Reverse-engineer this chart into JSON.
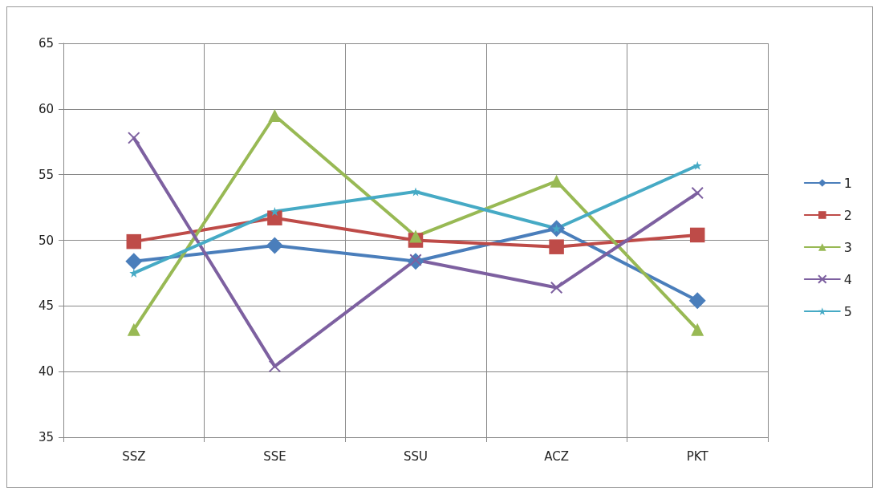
{
  "chart_data": {
    "type": "line",
    "categories": [
      "SSZ",
      "SSE",
      "SSU",
      "ACZ",
      "PKT"
    ],
    "series": [
      {
        "name": "1",
        "color": "#4a7ebb",
        "marker": "diamond",
        "values": [
          48.4,
          49.6,
          48.4,
          50.9,
          45.4
        ]
      },
      {
        "name": "2",
        "color": "#be4b48",
        "marker": "square",
        "values": [
          49.9,
          51.7,
          50.0,
          49.5,
          50.4
        ]
      },
      {
        "name": "3",
        "color": "#98b954",
        "marker": "triangle",
        "values": [
          43.2,
          59.5,
          50.3,
          54.5,
          43.2
        ]
      },
      {
        "name": "4",
        "color": "#7d60a0",
        "marker": "cross",
        "values": [
          57.8,
          40.4,
          48.5,
          46.4,
          53.6
        ]
      },
      {
        "name": "5",
        "color": "#46aac5",
        "marker": "star",
        "values": [
          47.5,
          52.2,
          53.7,
          50.9,
          55.7
        ]
      }
    ],
    "ylim": [
      35,
      65
    ],
    "yticks": [
      35,
      40,
      45,
      50,
      55,
      60,
      65
    ],
    "grid": true,
    "legend": "right",
    "line_style": "solid"
  }
}
